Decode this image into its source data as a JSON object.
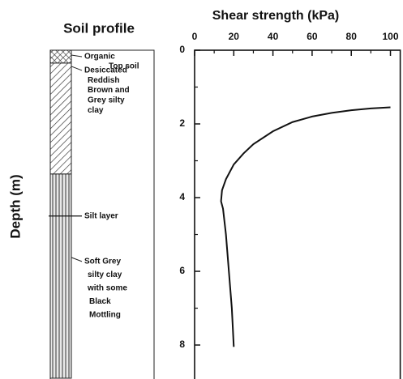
{
  "chart_data": {
    "type": "line",
    "title": "Shear strength (kPa)",
    "y_label": "Depth (m)",
    "x": [
      20,
      19,
      17.5,
      16,
      14.5,
      13.5,
      14,
      16,
      20,
      25,
      30,
      40,
      50,
      60,
      70,
      80,
      90,
      100
    ],
    "series": [
      {
        "color": "#111111",
        "values": [
          8.05,
          7,
          6,
          5,
          4.3,
          4.1,
          3.8,
          3.5,
          3.1,
          2.8,
          2.55,
          2.2,
          1.95,
          1.8,
          1.7,
          1.63,
          1.58,
          1.55
        ]
      }
    ],
    "xlim": [
      0,
      105
    ],
    "ylim": [
      0,
      8.9
    ],
    "y_inverted": true,
    "xticks": [
      0,
      20,
      40,
      60,
      80,
      100
    ],
    "yticks": [
      0,
      2,
      4,
      6,
      8
    ],
    "xminorticks": [
      10,
      30,
      50,
      70,
      90
    ],
    "yminorticks": [
      1,
      3,
      5,
      7
    ],
    "profile": {
      "title": "Soil profile",
      "layers": [
        {
          "lines": [
            "Organic",
            "Top soil"
          ],
          "top": 0,
          "bottom": 0.35,
          "pattern": "cross"
        },
        {
          "lines": [
            "Desiccated",
            "Reddish",
            "Brown and",
            "Grey silty",
            "clay"
          ],
          "top": 0.35,
          "bottom": 3.36,
          "pattern": "diagonal"
        },
        {
          "lines": [
            "Soft Grey",
            "silty clay",
            "with some",
            "Black",
            "Mottling"
          ],
          "top": 3.36,
          "bottom": 8.9,
          "pattern": "vertical"
        }
      ],
      "silt_layer": {
        "label": "Silt layer",
        "depth": 4.5
      }
    }
  }
}
